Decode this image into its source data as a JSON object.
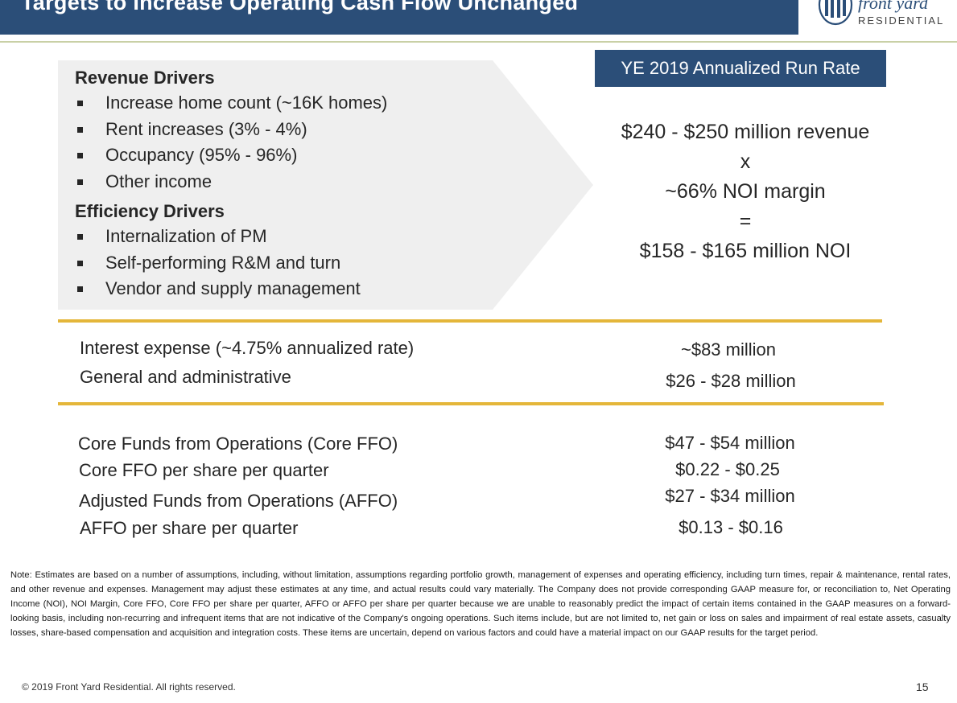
{
  "header": {
    "title": "Targets to Increase Operating Cash Flow Unchanged",
    "logo_name": "front yard",
    "logo_sub": "RESIDENTIAL"
  },
  "revenue_drivers": {
    "title": "Revenue Drivers",
    "items": [
      "Increase home count (~16K homes)",
      "Rent increases (3% - 4%)",
      "Occupancy (95% - 96%)",
      "Other income"
    ]
  },
  "efficiency_drivers": {
    "title": "Efficiency Drivers",
    "items": [
      "Internalization of PM",
      "Self-performing R&M and turn",
      "Vendor and supply management"
    ]
  },
  "run_rate": {
    "header": "YE 2019 Annualized Run Rate",
    "revenue": "$240 - $250 million revenue",
    "times": "x",
    "margin": "~66% NOI margin",
    "equals": "=",
    "noi": "$158 - $165 million NOI"
  },
  "expenses": [
    {
      "label": "Interest expense (~4.75% annualized rate)",
      "value": "~$83 million"
    },
    {
      "label": "General and administrative",
      "value": "$26 - $28 million"
    }
  ],
  "results": [
    {
      "label": "Core Funds from Operations (Core FFO)",
      "value": "$47 - $54 million"
    },
    {
      "label": "Core FFO per share per quarter",
      "value": "$0.22 - $0.25"
    },
    {
      "label": "Adjusted Funds from Operations (AFFO)",
      "value": "$27 - $34 million"
    },
    {
      "label": "AFFO per share per quarter",
      "value": "$0.13 - $0.16"
    }
  ],
  "footer": {
    "note": "Note: Estimates are based on a number of assumptions, including, without limitation, assumptions regarding portfolio growth, management of expenses and operating efficiency, including turn times, repair & maintenance, rental rates, and other revenue and expenses.  Management may adjust these estimates at any time, and actual results could vary materially. The Company does not provide corresponding GAAP measure for, or reconciliation to, Net Operating Income (NOI), NOI Margin, Core FFO, Core FFO per share per quarter, AFFO or AFFO per share per quarter because we are unable to reasonably predict the impact of certain items contained in the GAAP measures on a forward-looking basis, including non-recurring and infrequent items that are not indicative of the Company's ongoing operations.  Such items include, but are not limited to, net gain or loss on sales and impairment of real estate assets, casualty losses, share-based compensation and acquisition and integration costs. These items are uncertain, depend on various factors and could have a material impact on our GAAP results for the target period.",
    "copyright": "© 2019 Front Yard Residential. All rights reserved.",
    "page_number": "15"
  },
  "colors": {
    "brand_navy": "#2b4e78",
    "gold_rule": "#e4b63a",
    "arrow_gray": "#efefef"
  }
}
